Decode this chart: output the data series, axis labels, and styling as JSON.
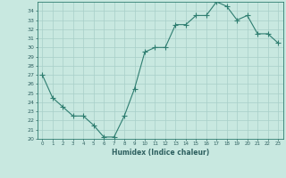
{
  "x": [
    0,
    1,
    2,
    3,
    4,
    5,
    6,
    7,
    8,
    9,
    10,
    11,
    12,
    13,
    14,
    15,
    16,
    17,
    18,
    19,
    20,
    21,
    22,
    23
  ],
  "y": [
    27.0,
    24.5,
    23.5,
    22.5,
    22.5,
    21.5,
    20.2,
    20.2,
    22.5,
    25.5,
    29.5,
    30.0,
    30.0,
    32.5,
    32.5,
    33.5,
    33.5,
    35.0,
    34.5,
    33.0,
    33.5,
    31.5,
    31.5,
    30.5
  ],
  "xlabel": "Humidex (Indice chaleur)",
  "ylim": [
    20,
    35
  ],
  "xlim": [
    -0.5,
    23.5
  ],
  "yticks": [
    20,
    21,
    22,
    23,
    24,
    25,
    26,
    27,
    28,
    29,
    30,
    31,
    32,
    33,
    34
  ],
  "xticks": [
    0,
    1,
    2,
    3,
    4,
    5,
    6,
    7,
    8,
    9,
    10,
    11,
    12,
    13,
    14,
    15,
    16,
    17,
    18,
    19,
    20,
    21,
    22,
    23
  ],
  "line_color": "#2e7d70",
  "marker": "+",
  "bg_color": "#c8e8e0",
  "grid_color": "#a8cfc8",
  "label_color": "#2e6060"
}
